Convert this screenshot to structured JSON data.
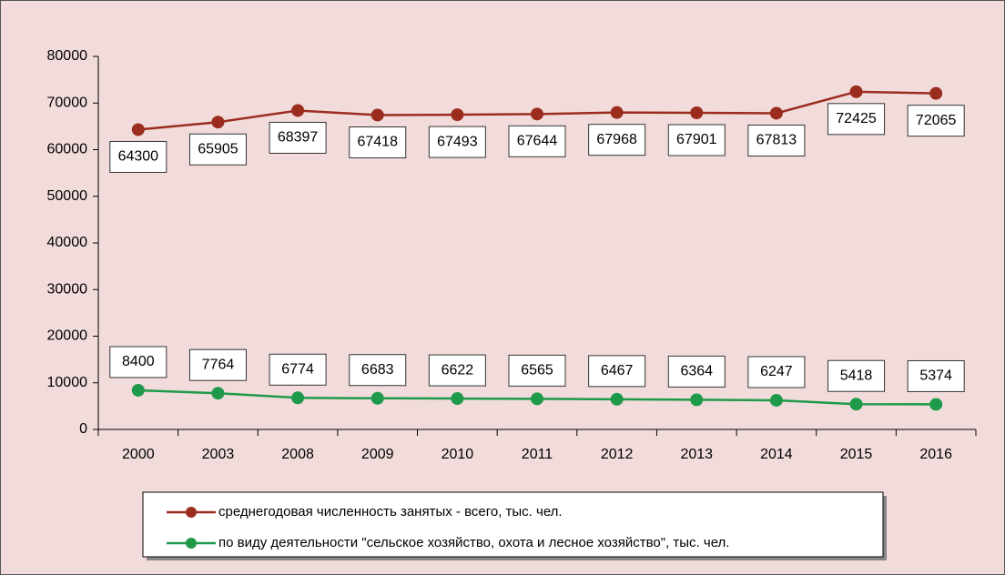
{
  "chart_data": {
    "type": "line",
    "categories": [
      "2000",
      "2003",
      "2008",
      "2009",
      "2010",
      "2011",
      "2012",
      "2013",
      "2014",
      "2015",
      "2016"
    ],
    "series": [
      {
        "name": "среднегодовая численность занятых -  всего, тыс. чел.",
        "color": "#9b2d1f",
        "values": [
          64300,
          65905,
          68397,
          67418,
          67493,
          67644,
          67968,
          67901,
          67813,
          72425,
          72065
        ]
      },
      {
        "name": "по виду деятельности \"сельское хозяйство, охота и лесное хозяйство\", тыс. чел.",
        "color": "#1e9a4a",
        "values": [
          8400,
          7764,
          6774,
          6683,
          6622,
          6565,
          6467,
          6364,
          6247,
          5418,
          5374
        ]
      }
    ],
    "ylim": [
      0,
      80000
    ],
    "yticks": [
      0,
      10000,
      20000,
      30000,
      40000,
      50000,
      60000,
      70000,
      80000
    ]
  }
}
